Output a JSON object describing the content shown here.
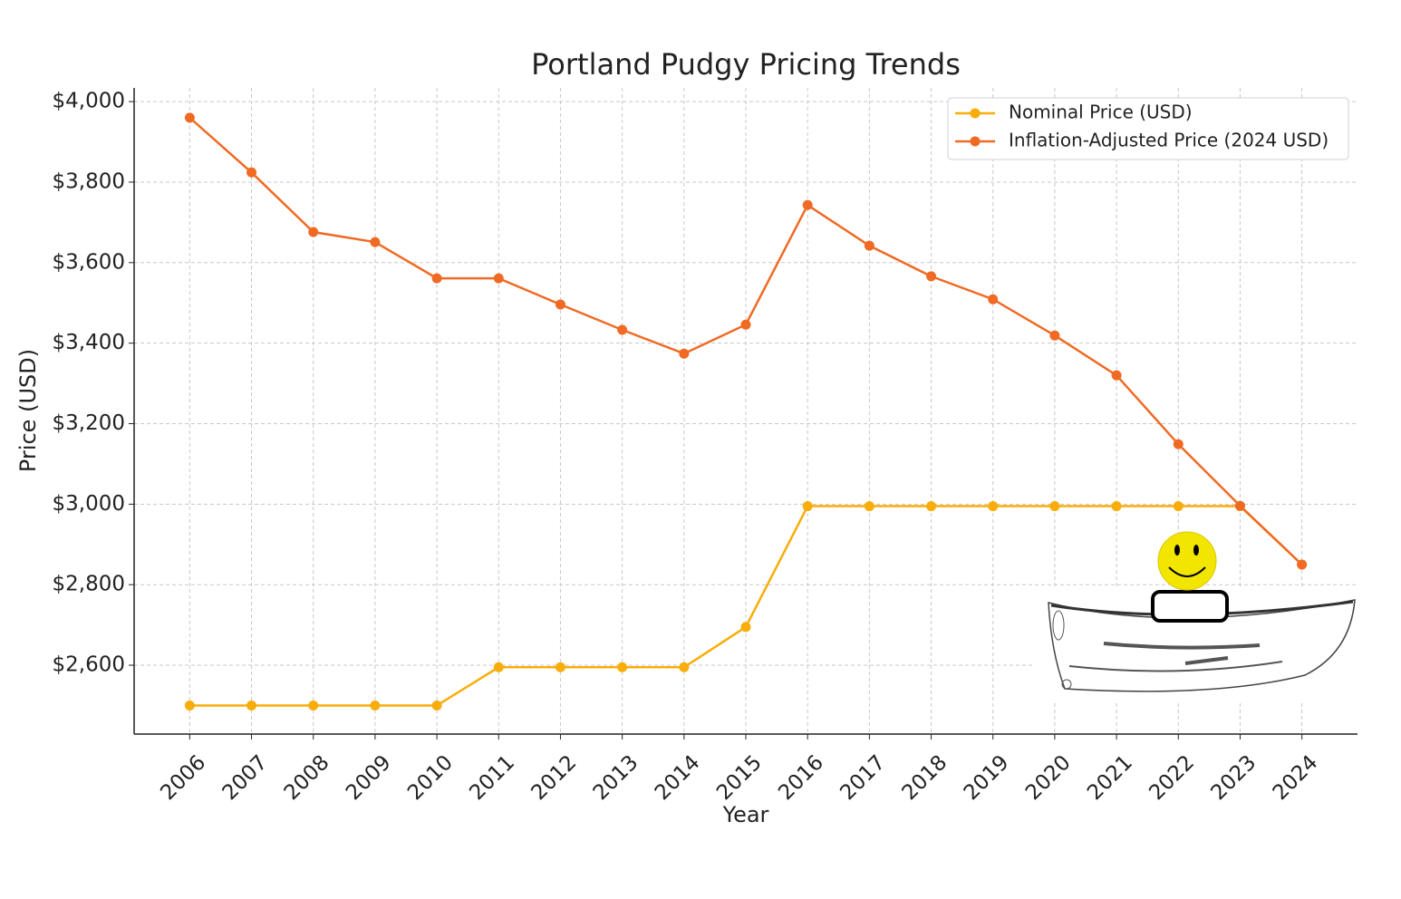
{
  "chart_data": {
    "type": "line",
    "title": "Portland Pudgy Pricing Trends",
    "x_label": "Year",
    "y_label": "Price (USD)",
    "x": [
      2006,
      2007,
      2008,
      2009,
      2010,
      2011,
      2012,
      2013,
      2014,
      2015,
      2016,
      2017,
      2018,
      2019,
      2020,
      2021,
      2022,
      2023,
      2024
    ],
    "series": [
      {
        "name": "Nominal Price (USD)",
        "color": "#f9ad0a",
        "values": [
          2500,
          2500,
          2500,
          2500,
          2500,
          2595,
          2595,
          2595,
          2595,
          2695,
          2995,
          2995,
          2995,
          2995,
          2995,
          2995,
          2995,
          2995,
          2850
        ]
      },
      {
        "name": "Inflation-Adjusted Price (2024 USD)",
        "color": "#f06a24",
        "values": [
          3960,
          3824,
          3676,
          3651,
          3561,
          3561,
          3496,
          3433,
          3374,
          3446,
          3743,
          3642,
          3566,
          3509,
          3419,
          3320,
          3149,
          2996,
          2850
        ]
      }
    ],
    "xlim": [
      2005.1,
      2024.9
    ],
    "xticks": [
      2006,
      2007,
      2008,
      2009,
      2010,
      2011,
      2012,
      2013,
      2014,
      2015,
      2016,
      2017,
      2018,
      2019,
      2020,
      2021,
      2022,
      2023,
      2024
    ],
    "ylim": [
      2429,
      4034
    ],
    "yticks": [
      {
        "value": 2600,
        "label": "$2,600"
      },
      {
        "value": 2800,
        "label": "$2,800"
      },
      {
        "value": 3000,
        "label": "$3,000"
      },
      {
        "value": 3200,
        "label": "$3,200"
      },
      {
        "value": 3400,
        "label": "$3,400"
      },
      {
        "value": 3600,
        "label": "$3,600"
      },
      {
        "value": 3800,
        "label": "$3,800"
      },
      {
        "value": 4000,
        "label": "$4,000"
      }
    ],
    "grid": true,
    "legend": "upper right"
  }
}
